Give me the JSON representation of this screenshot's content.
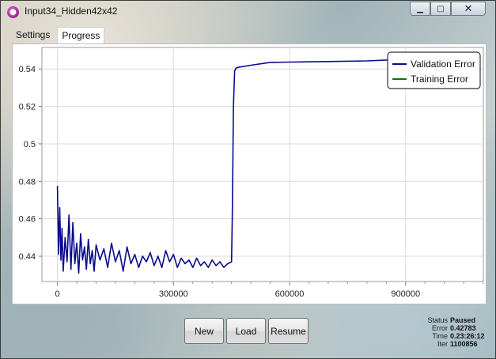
{
  "window": {
    "title": "Input34_Hidden42x42",
    "controls": {
      "minimize": "▁",
      "maximize": "□",
      "close": "✕"
    }
  },
  "tabs": [
    {
      "label": "Settings",
      "active": false
    },
    {
      "label": "Progress",
      "active": true
    }
  ],
  "buttons": {
    "new": "New",
    "load": "Load",
    "resume": "Resume"
  },
  "status": {
    "status_label": "Status",
    "status_value": "Paused",
    "error_label": "Error",
    "error_value": "0.42783",
    "time_label": "Time",
    "time_value": "0.23:26:12",
    "iter_label": "Iter",
    "iter_value": "1100856"
  },
  "chart_data": {
    "type": "line",
    "xlim": [
      -40000,
      1100856
    ],
    "ylim": [
      0.4265,
      0.5515
    ],
    "x_ticks": [
      0,
      300000,
      600000,
      900000
    ],
    "x_tick_labels": [
      "0",
      "300000",
      "600000",
      "900000"
    ],
    "y_ticks": [
      0.44,
      0.46,
      0.48,
      0.5,
      0.52,
      0.54
    ],
    "y_tick_labels": [
      "0.44",
      "0.46",
      "0.48",
      "0.5",
      "0.52",
      "0.54"
    ],
    "grid": true,
    "legend_position": "top-right",
    "series": [
      {
        "name": "Validation Error",
        "color": "#0a0a8c",
        "x": [
          0,
          3000,
          6000,
          9000,
          12000,
          15000,
          20000,
          25000,
          30000,
          35000,
          40000,
          45000,
          50000,
          55000,
          60000,
          65000,
          70000,
          75000,
          80000,
          85000,
          90000,
          95000,
          100000,
          110000,
          120000,
          130000,
          140000,
          150000,
          160000,
          170000,
          180000,
          190000,
          200000,
          210000,
          220000,
          230000,
          240000,
          250000,
          260000,
          270000,
          280000,
          290000,
          300000,
          310000,
          320000,
          330000,
          340000,
          350000,
          360000,
          370000,
          380000,
          390000,
          400000,
          410000,
          420000,
          430000,
          440000,
          450000,
          452000,
          455000,
          458000,
          462000,
          470000,
          500000,
          550000,
          600000,
          700000,
          800000,
          900000,
          1000000
        ],
        "y": [
          0.4775,
          0.441,
          0.466,
          0.438,
          0.455,
          0.432,
          0.45,
          0.437,
          0.462,
          0.433,
          0.458,
          0.436,
          0.447,
          0.431,
          0.452,
          0.438,
          0.445,
          0.433,
          0.449,
          0.436,
          0.443,
          0.432,
          0.446,
          0.438,
          0.444,
          0.434,
          0.447,
          0.437,
          0.443,
          0.432,
          0.445,
          0.436,
          0.441,
          0.434,
          0.44,
          0.437,
          0.442,
          0.435,
          0.44,
          0.434,
          0.443,
          0.437,
          0.441,
          0.434,
          0.439,
          0.436,
          0.438,
          0.434,
          0.439,
          0.435,
          0.437,
          0.434,
          0.438,
          0.435,
          0.437,
          0.434,
          0.436,
          0.437,
          0.46,
          0.52,
          0.539,
          0.5405,
          0.541,
          0.542,
          0.5435,
          0.5437,
          0.544,
          0.5443,
          0.5452,
          0.5455
        ]
      },
      {
        "name": "Training Error",
        "color": "#1a6a1a",
        "x": [],
        "y": []
      }
    ]
  }
}
